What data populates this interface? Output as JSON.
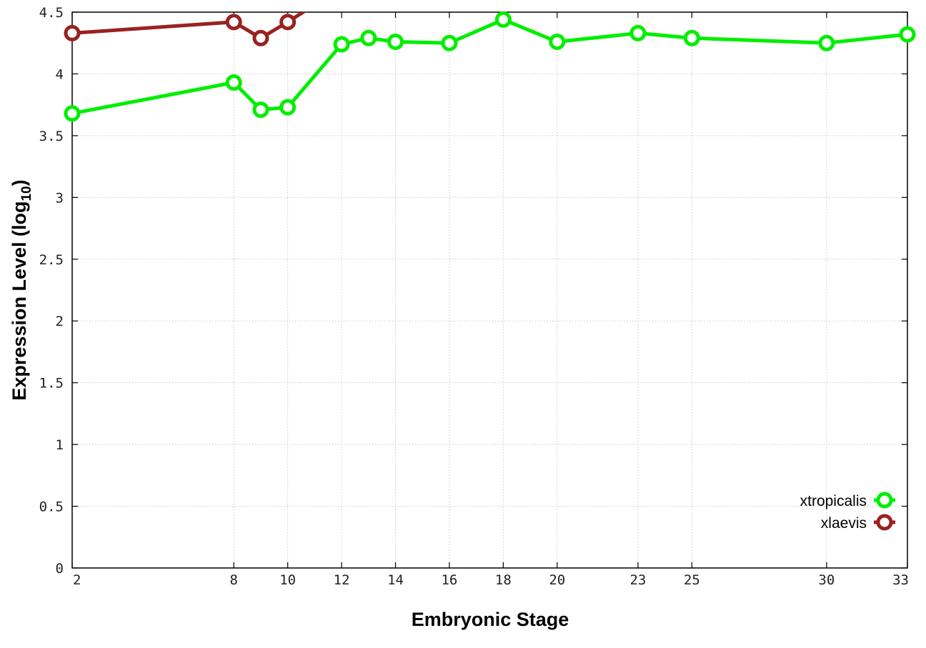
{
  "chart_data": {
    "type": "line",
    "title": "",
    "xlabel": "Embryonic Stage",
    "ylabel_main": "Expression Level (log",
    "ylabel_sub": "10",
    "ylabel_close": ")",
    "xlim": [
      2,
      33
    ],
    "ylim": [
      0,
      4.5
    ],
    "x_ticks": [
      2,
      8,
      10,
      12,
      14,
      16,
      18,
      20,
      23,
      25,
      30,
      33
    ],
    "x_tick_labels": [
      "2",
      "8",
      "10",
      "12",
      "14",
      "16",
      "18",
      "20",
      "23",
      "25",
      "30",
      "33"
    ],
    "y_ticks": [
      0,
      0.5,
      1,
      1.5,
      2,
      2.5,
      3,
      3.5,
      4,
      4.5
    ],
    "y_tick_labels": [
      "0",
      "0.5",
      "1",
      "1.5",
      "2",
      "2.5",
      "3",
      "3.5",
      "4",
      "4.5"
    ],
    "grid": true,
    "legend_position": "bottom-right",
    "series": [
      {
        "name": "xtropicalis",
        "color": "#00ee00",
        "x": [
          2,
          8,
          9,
          10,
          12,
          13,
          14,
          16,
          18,
          20,
          23,
          25,
          30,
          33
        ],
        "y": [
          3.68,
          3.93,
          3.71,
          3.73,
          4.24,
          4.29,
          4.26,
          4.25,
          4.44,
          4.26,
          4.33,
          4.29,
          4.25,
          4.32
        ]
      },
      {
        "name": "xlaevis",
        "color": "#992222",
        "x": [
          2,
          8,
          9,
          10,
          11
        ],
        "y": [
          4.33,
          4.42,
          4.29,
          4.42,
          4.56
        ]
      }
    ]
  }
}
